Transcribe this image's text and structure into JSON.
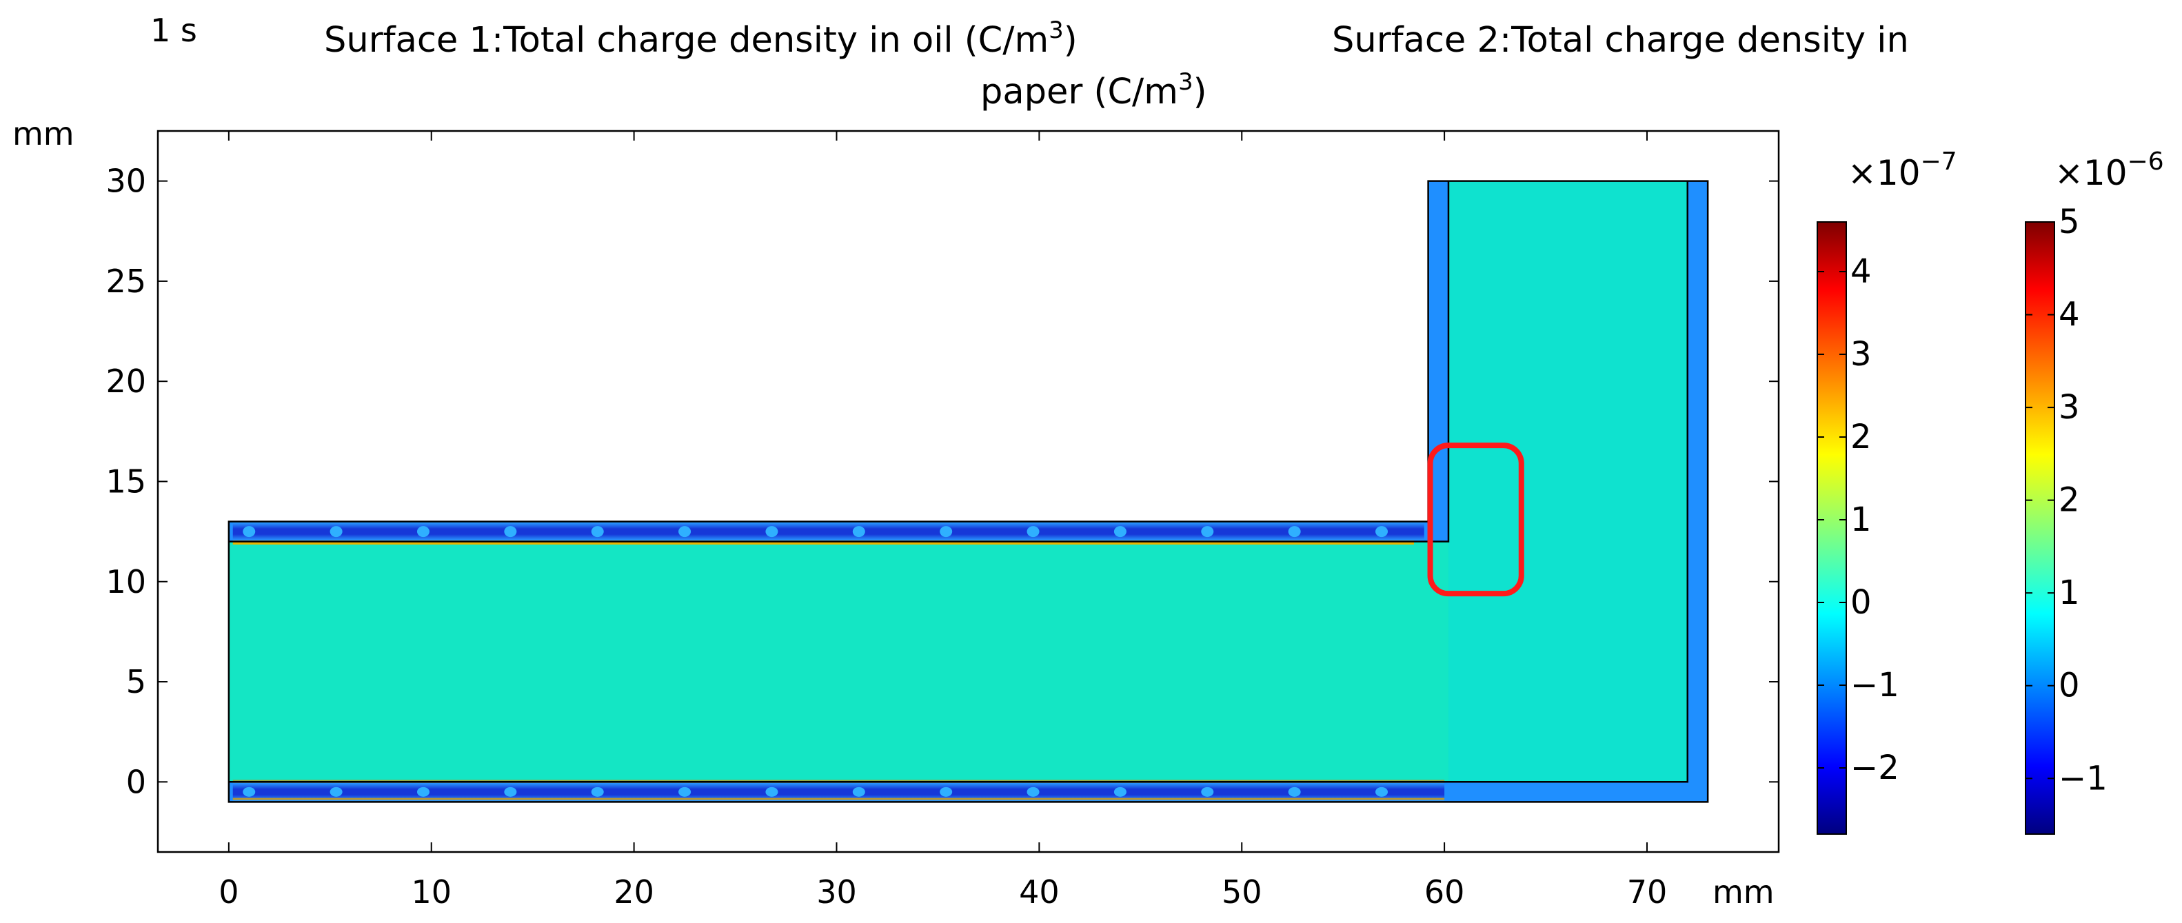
{
  "time_label": "1 s",
  "title_line1": "Surface 1:Total charge density in oil (C/m",
  "title_line1_sup": "3",
  "title_line1_close": ")",
  "title_line1_b": "Surface 2:Total charge density in",
  "title_line2": "paper (C/m",
  "title_line2_sup": "3",
  "title_line2_close": ")",
  "colors": {
    "oil_field": "#14e6c4",
    "paper_field": "#0fe2cf",
    "paper_band": "#1f8fff",
    "highlight": "#ff1a1a"
  },
  "chart_data": {
    "type": "heatmap",
    "xlabel": "mm",
    "ylabel": "mm",
    "xlim": [
      -3.5,
      76.5
    ],
    "ylim": [
      -3.5,
      32.5
    ],
    "x_ticks": [
      0,
      10,
      20,
      30,
      40,
      50,
      60,
      70
    ],
    "y_ticks": [
      0,
      5,
      10,
      15,
      20,
      25,
      30
    ],
    "grid": false,
    "colorbars": [
      {
        "name": "Surface 1",
        "multiplier_base": "×10",
        "multiplier_exp": "−7",
        "ticks": [
          "4",
          "3",
          "2",
          "1",
          "0",
          "−1",
          "−2"
        ],
        "tick_values": [
          4,
          3,
          2,
          1,
          0,
          -1,
          -2
        ],
        "range": [
          -2.8,
          4.6
        ]
      },
      {
        "name": "Surface 2",
        "multiplier_base": "×10",
        "multiplier_exp": "−6",
        "ticks": [
          "5",
          "4",
          "3",
          "2",
          "1",
          "0",
          "−1"
        ],
        "tick_values": [
          5,
          4,
          3,
          2,
          1,
          0,
          -1
        ],
        "range": [
          -1.6,
          5.0
        ]
      }
    ],
    "annotation": {
      "type": "rounded-rectangle",
      "x_range": [
        59.3,
        63.8
      ],
      "y_range": [
        9.4,
        16.8
      ]
    }
  }
}
